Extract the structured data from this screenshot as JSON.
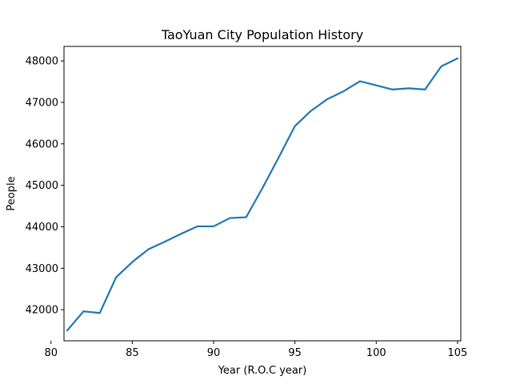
{
  "chart_data": {
    "type": "line",
    "title": "TaoYuan City Population History",
    "xlabel": "Year (R.O.C year)",
    "ylabel": "People",
    "xlim": [
      80.8,
      105.2
    ],
    "ylim": [
      41250,
      48350
    ],
    "x_ticks": [
      80,
      85,
      90,
      95,
      100,
      105
    ],
    "y_ticks": [
      42000,
      43000,
      44000,
      45000,
      46000,
      47000,
      48000
    ],
    "grid": false,
    "series": [
      {
        "color": "#1f77b4",
        "x": [
          81,
          82,
          83,
          84,
          85,
          86,
          87,
          88,
          89,
          90,
          91,
          92,
          93,
          94,
          95,
          96,
          97,
          98,
          99,
          100,
          101,
          102,
          103,
          104,
          105
        ],
        "y": [
          41500,
          41960,
          41920,
          42780,
          43150,
          43460,
          43640,
          43830,
          44010,
          44010,
          44210,
          44230,
          44930,
          45670,
          46430,
          46800,
          47080,
          47270,
          47510,
          47410,
          47310,
          47340,
          47310,
          47870,
          48060
        ]
      }
    ]
  }
}
